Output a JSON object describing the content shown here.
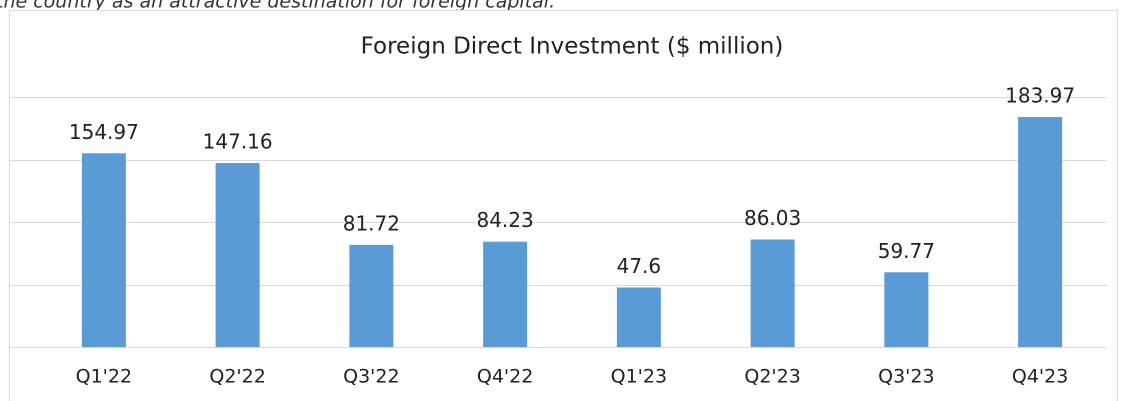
{
  "intro": "the country as an attractive destination for foreign capital.",
  "chart_data": {
    "type": "bar",
    "title": "Foreign Direct Investment ($ million)",
    "categories": [
      "Q1'22",
      "Q2'22",
      "Q3'22",
      "Q4'22",
      "Q1'23",
      "Q2'23",
      "Q3'23",
      "Q4'23"
    ],
    "values": [
      154.97,
      147.16,
      81.72,
      84.23,
      47.6,
      86.03,
      59.77,
      183.97
    ],
    "color": "#5b9bd5",
    "ylim": [
      0,
      200
    ],
    "yticks": [
      0,
      50,
      100,
      150,
      200
    ],
    "grid": true
  }
}
